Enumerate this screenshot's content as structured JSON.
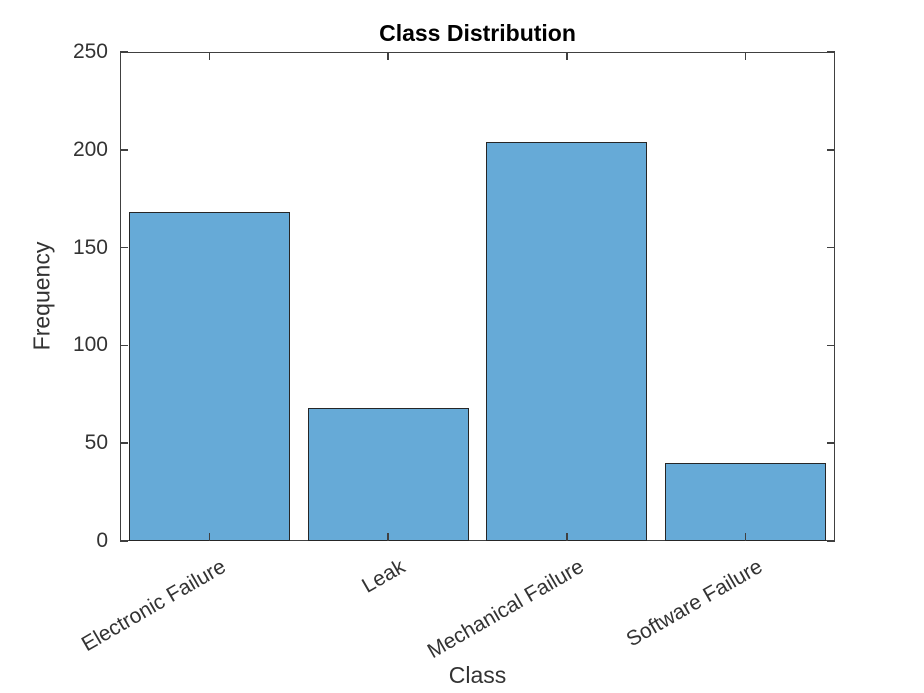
{
  "chart_data": {
    "type": "bar",
    "title": "Class Distribution",
    "xlabel": "Class",
    "ylabel": "Frequency",
    "categories": [
      "Electronic Failure",
      "Leak",
      "Mechanical Failure",
      "Software Failure"
    ],
    "values": [
      168,
      68,
      204,
      40
    ],
    "ylim": [
      0,
      250
    ],
    "yticks": [
      0,
      50,
      100,
      150,
      200,
      250
    ],
    "xtick_angle_deg": 30,
    "grid": false,
    "box": true,
    "tick_direction": "in",
    "bar_face_color": "#66AAD7",
    "bar_edge_color": "#262626",
    "axis_color": "#404040",
    "tick_label_color": "#333333",
    "axis_label_color": "#333333",
    "title_color": "#000000",
    "background_color": "#ffffff"
  }
}
